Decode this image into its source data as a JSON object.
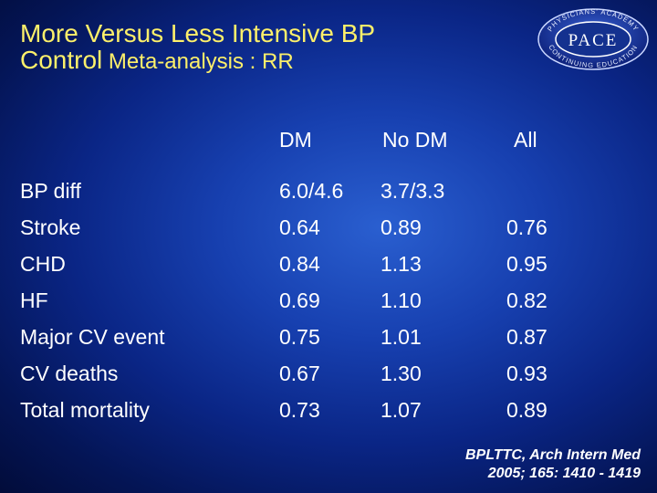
{
  "title": {
    "line1": "More Versus Less Intensive BP",
    "line2_main": "Control",
    "line2_sub": " Meta-analysis : RR"
  },
  "logo": {
    "ring_top": "PHYSICIANS' ACADEMY",
    "ring_bottom": "CONTINUING EDUCATION",
    "text": "PACE"
  },
  "table": {
    "headers": [
      "DM",
      "No DM",
      "All"
    ],
    "rows": [
      {
        "label": "BP diff",
        "dm": "6.0/4.6",
        "nodm": "3.7/3.3",
        "all": ""
      },
      {
        "label": "Stroke",
        "dm": "0.64",
        "nodm": "0.89",
        "all": "0.76"
      },
      {
        "label": "CHD",
        "dm": "0.84",
        "nodm": "1.13",
        "all": "0.95"
      },
      {
        "label": "HF",
        "dm": "0.69",
        "nodm": "1.10",
        "all": "0.82"
      },
      {
        "label": "Major CV event",
        "dm": "0.75",
        "nodm": "1.01",
        "all": "0.87"
      },
      {
        "label": "CV deaths",
        "dm": "0.67",
        "nodm": "1.30",
        "all": "0.93"
      },
      {
        "label": "Total mortality",
        "dm": "0.73",
        "nodm": "1.07",
        "all": "0.89"
      }
    ]
  },
  "citation": {
    "line1": "BPLTTC, Arch Intern Med",
    "line2": "2005; 165: 1410 - 1419"
  }
}
